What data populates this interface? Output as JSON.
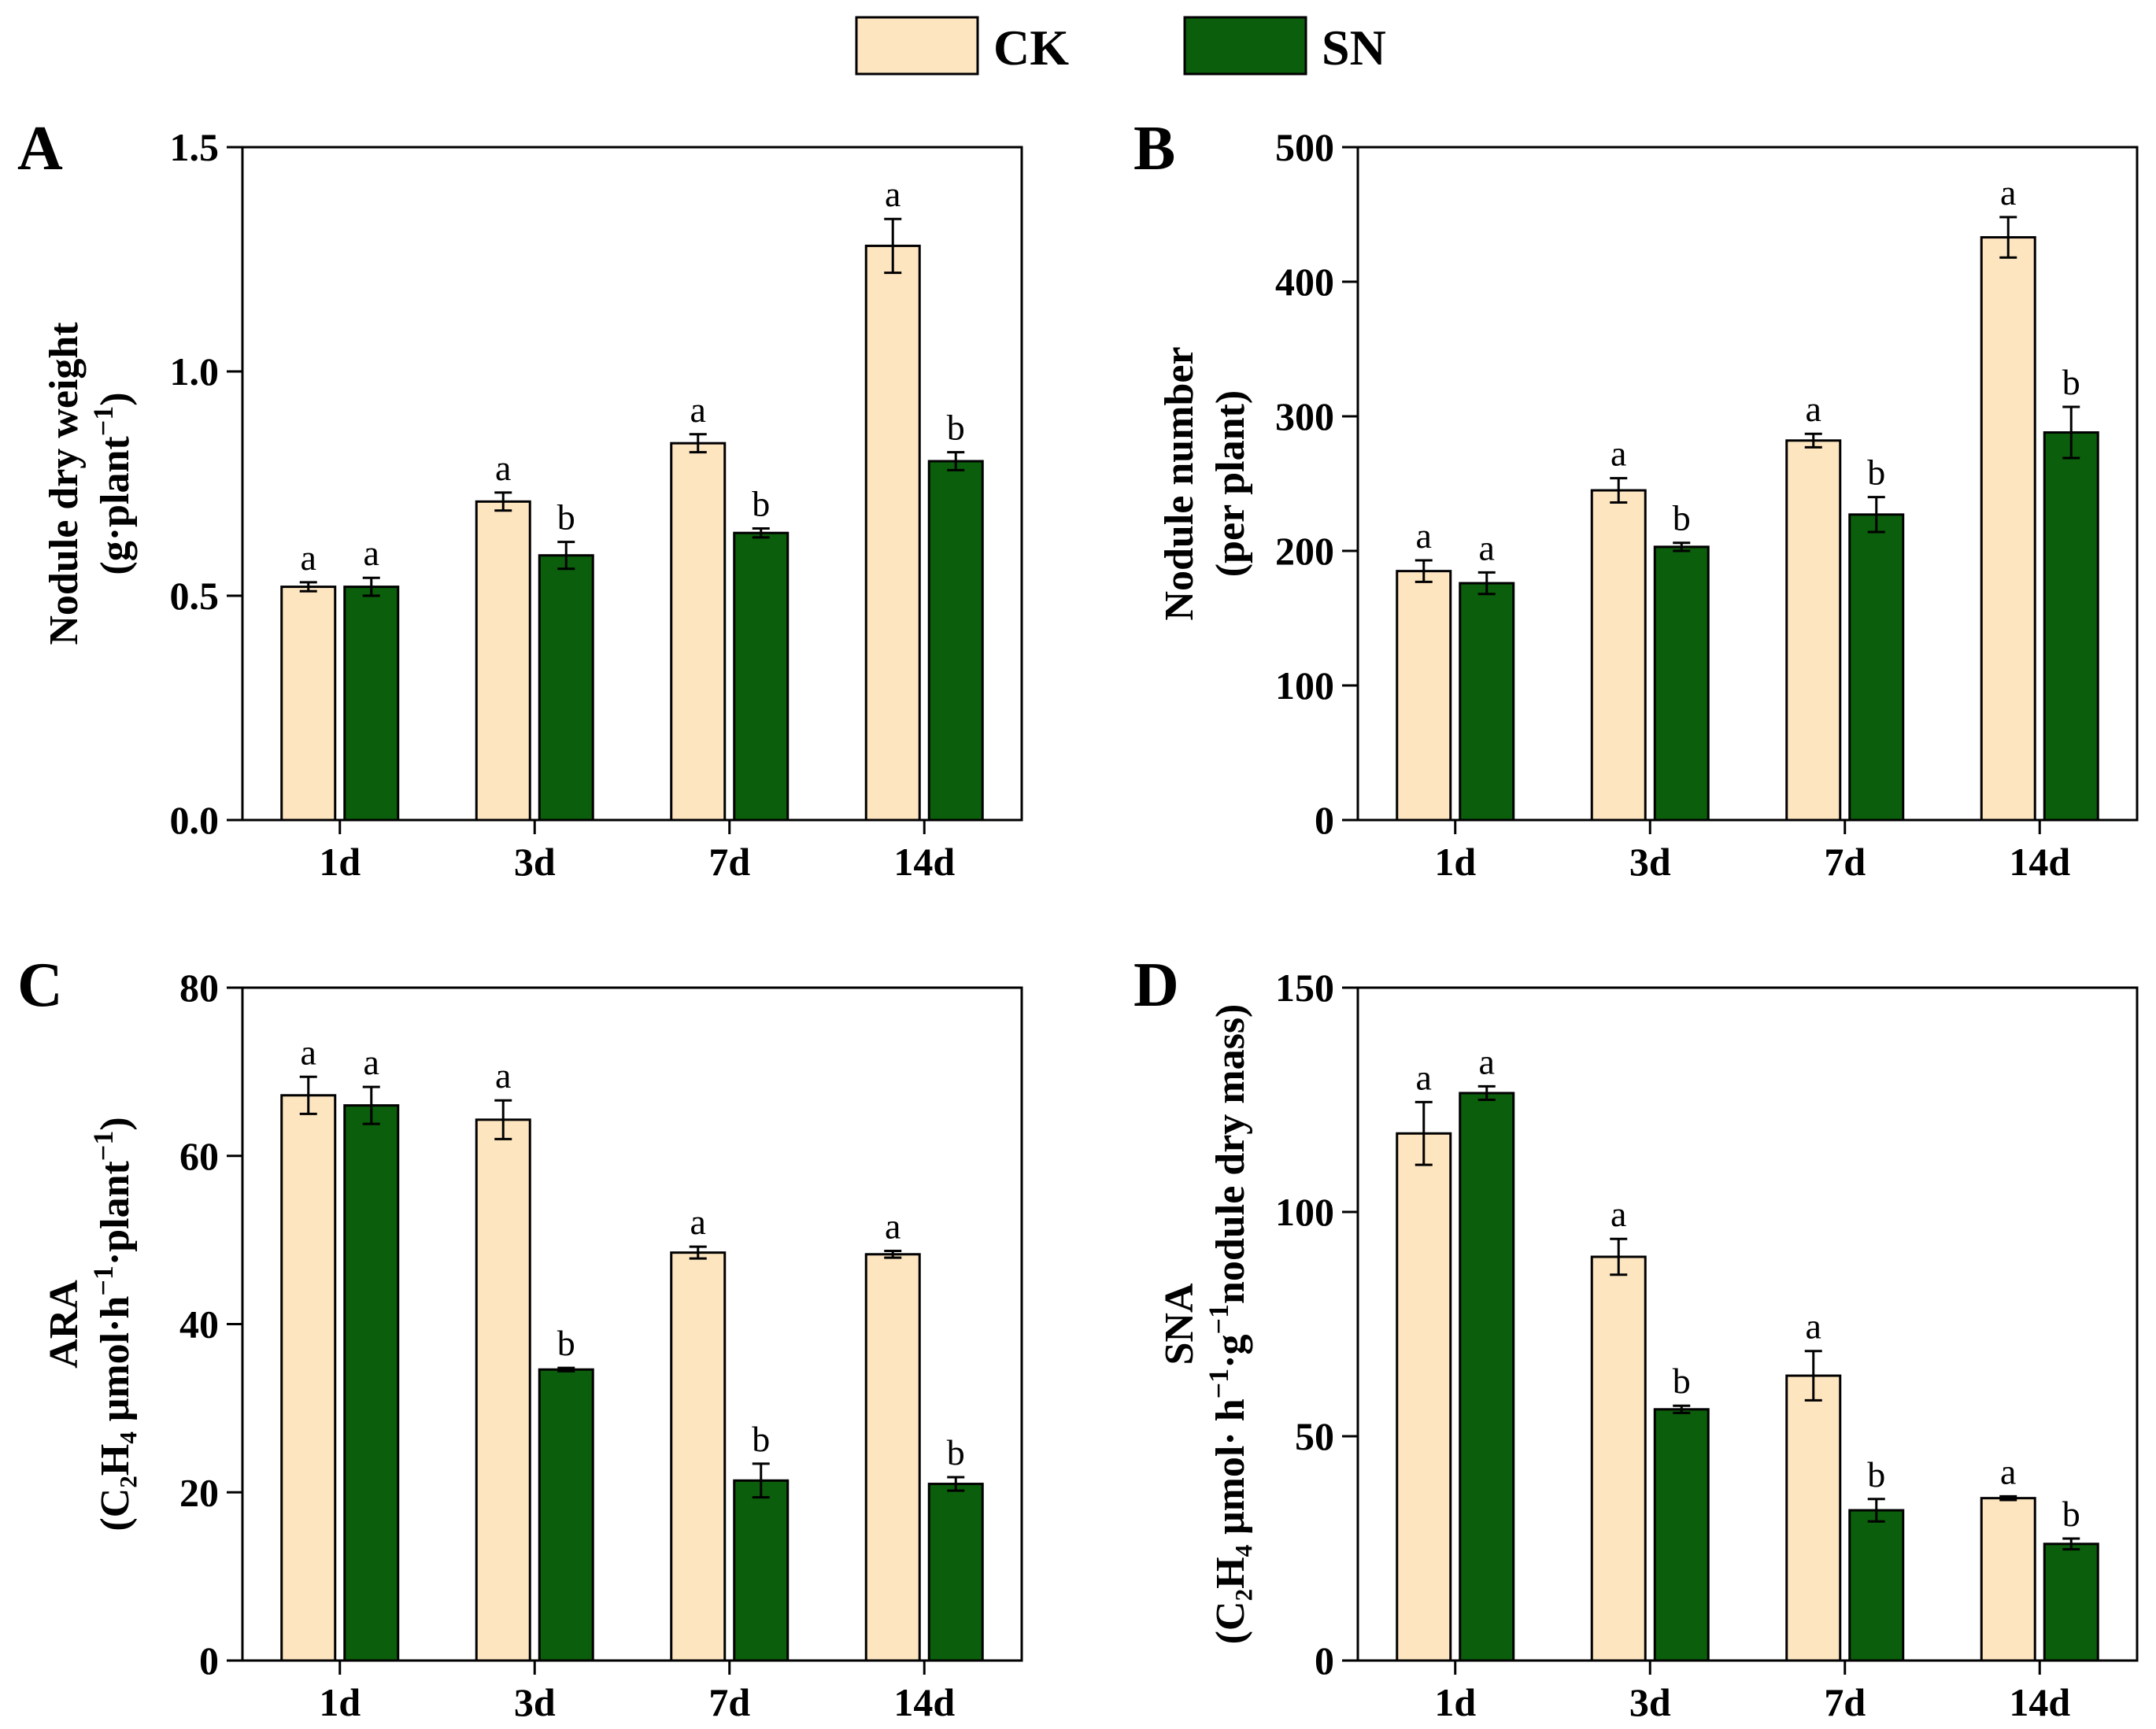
{
  "legend": {
    "items": [
      {
        "label": "CK",
        "color": "#FDE5C0"
      },
      {
        "label": "SN",
        "color": "#0B5E0B"
      }
    ]
  },
  "colors": {
    "CK": "#FDE5C0",
    "SN": "#0B5E0B",
    "axis": "#000000"
  },
  "chart_data": [
    {
      "type": "bar",
      "panel": "A",
      "ylabel_line1": "Nodule dry weight",
      "ylabel_line2": "(g·plant",
      "ylabel_sup": "−1",
      "ylabel_end": ")",
      "ylim": [
        0,
        1.5
      ],
      "yticks": [
        "0.0",
        "0.5",
        "1.0",
        "1.5"
      ],
      "categories": [
        "1d",
        "3d",
        "7d",
        "14d"
      ],
      "series": [
        {
          "name": "CK",
          "values": [
            0.52,
            0.71,
            0.84,
            1.28
          ],
          "errors": [
            0.01,
            0.02,
            0.02,
            0.06
          ],
          "letters": [
            "a",
            "a",
            "a",
            "a"
          ]
        },
        {
          "name": "SN",
          "values": [
            0.52,
            0.59,
            0.64,
            0.8
          ],
          "errors": [
            0.02,
            0.03,
            0.01,
            0.02
          ],
          "letters": [
            "a",
            "b",
            "b",
            "b"
          ]
        }
      ]
    },
    {
      "type": "bar",
      "panel": "B",
      "ylabel_line1": "Nodule number",
      "ylabel_line2": "(per plant)",
      "ylim": [
        0,
        500
      ],
      "yticks": [
        "0",
        "100",
        "200",
        "300",
        "400",
        "500"
      ],
      "categories": [
        "1d",
        "3d",
        "7d",
        "14d"
      ],
      "series": [
        {
          "name": "CK",
          "values": [
            185,
            245,
            282,
            433
          ],
          "errors": [
            8,
            9,
            5,
            15
          ],
          "letters": [
            "a",
            "a",
            "a",
            "a"
          ]
        },
        {
          "name": "SN",
          "values": [
            176,
            203,
            227,
            288
          ],
          "errors": [
            8,
            3,
            13,
            19
          ],
          "letters": [
            "a",
            "b",
            "b",
            "b"
          ]
        }
      ]
    },
    {
      "type": "bar",
      "panel": "C",
      "ylabel_line1": "ARA",
      "ylabel_line2": "(C₂H₄ μmol·h",
      "ylabel_sup": "−1",
      "ylabel_mid": "·plant",
      "ylabel_sup2": "−1",
      "ylabel_end": ")",
      "ylim": [
        0,
        80
      ],
      "yticks": [
        "0",
        "20",
        "40",
        "60",
        "80"
      ],
      "categories": [
        "1d",
        "3d",
        "7d",
        "14d"
      ],
      "series": [
        {
          "name": "CK",
          "values": [
            67.2,
            64.3,
            48.5,
            48.3
          ],
          "errors": [
            2.2,
            2.3,
            0.7,
            0.4
          ],
          "letters": [
            "a",
            "a",
            "a",
            "a"
          ]
        },
        {
          "name": "SN",
          "values": [
            66.0,
            34.6,
            21.4,
            21.0
          ],
          "errors": [
            2.2,
            0.2,
            2.0,
            0.8
          ],
          "letters": [
            "a",
            "b",
            "b",
            "b"
          ]
        }
      ]
    },
    {
      "type": "bar",
      "panel": "D",
      "ylabel_line1": "SNA",
      "ylabel_line2": "(C₂H₄ μmol· h",
      "ylabel_sup": "−1",
      "ylabel_mid": "·g",
      "ylabel_sup2": "−1",
      "ylabel_end": "nodule dry mass)",
      "ylim": [
        0,
        150
      ],
      "yticks": [
        "0",
        "50",
        "100",
        "150"
      ],
      "categories": [
        "1d",
        "3d",
        "7d",
        "14d"
      ],
      "series": [
        {
          "name": "CK",
          "values": [
            117.5,
            90.0,
            63.5,
            36.2
          ],
          "errors": [
            7.0,
            4.0,
            5.5,
            0.4
          ],
          "letters": [
            "a",
            "a",
            "a",
            "a"
          ]
        },
        {
          "name": "SN",
          "values": [
            126.5,
            56.0,
            33.5,
            26.0
          ],
          "errors": [
            1.5,
            0.8,
            2.5,
            1.2
          ],
          "letters": [
            "a",
            "b",
            "b",
            "b"
          ]
        }
      ]
    }
  ]
}
